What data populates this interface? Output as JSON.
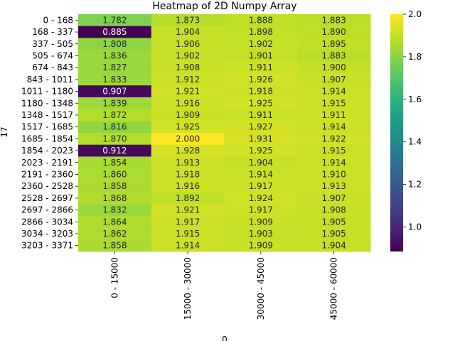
{
  "chart_data": {
    "type": "heatmap",
    "title": "Heatmap of 2D Numpy Array",
    "xlabel": "0",
    "ylabel": "17",
    "x_categories": [
      "0 - 15000",
      "15000 - 30000",
      "30000 - 45000",
      "45000 - 60000"
    ],
    "y_categories": [
      "0 - 168",
      "168 - 337",
      "337 - 505",
      "505 - 674",
      "674 - 843",
      "843 - 1011",
      "1011 - 1180",
      "1180 - 1348",
      "1348 - 1517",
      "1517 - 1685",
      "1685 - 1854",
      "1854 - 2023",
      "2023 - 2191",
      "2191 - 2360",
      "2360 - 2528",
      "2528 - 2697",
      "2697 - 2866",
      "2866 - 3034",
      "3034 - 3203",
      "3203 - 3371"
    ],
    "values": [
      [
        1.782,
        1.873,
        1.888,
        1.883
      ],
      [
        0.885,
        1.904,
        1.898,
        1.89
      ],
      [
        1.808,
        1.906,
        1.902,
        1.895
      ],
      [
        1.836,
        1.902,
        1.901,
        1.883
      ],
      [
        1.827,
        1.908,
        1.911,
        1.9
      ],
      [
        1.833,
        1.912,
        1.926,
        1.907
      ],
      [
        0.907,
        1.921,
        1.918,
        1.914
      ],
      [
        1.839,
        1.916,
        1.925,
        1.915
      ],
      [
        1.872,
        1.909,
        1.911,
        1.911
      ],
      [
        1.816,
        1.925,
        1.927,
        1.914
      ],
      [
        1.87,
        2.0,
        1.931,
        1.922
      ],
      [
        0.912,
        1.928,
        1.925,
        1.915
      ],
      [
        1.854,
        1.913,
        1.904,
        1.914
      ],
      [
        1.86,
        1.918,
        1.914,
        1.91
      ],
      [
        1.858,
        1.916,
        1.917,
        1.913
      ],
      [
        1.868,
        1.892,
        1.924,
        1.907
      ],
      [
        1.832,
        1.921,
        1.917,
        1.908
      ],
      [
        1.864,
        1.917,
        1.909,
        1.905
      ],
      [
        1.862,
        1.915,
        1.903,
        1.905
      ],
      [
        1.858,
        1.914,
        1.909,
        1.904
      ]
    ],
    "value_format": "%.3f",
    "colormap": "viridis",
    "vmin": 0.885,
    "vmax": 2.0,
    "colorbar_ticks": [
      "1.0",
      "1.2",
      "1.4",
      "1.6",
      "1.8",
      "2.0"
    ],
    "grid": false,
    "legend": "colorbar-right"
  }
}
